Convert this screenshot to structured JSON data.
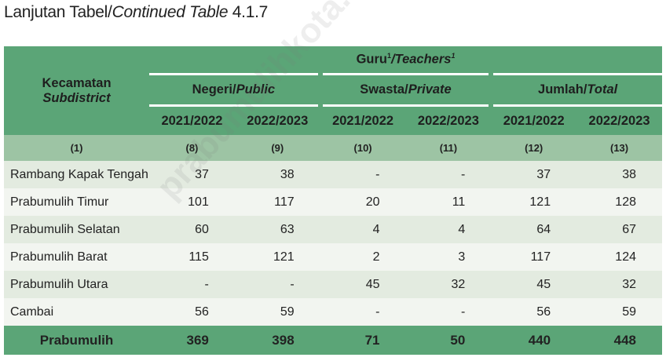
{
  "title": {
    "main": "Lanjutan Tabel/",
    "italic": "Continued Table",
    "num": " 4.1.7"
  },
  "header": {
    "col1": "Kecamatan",
    "col1_en": "Subdistrict",
    "group": "Guru",
    "group_sup": "1",
    "group_en": "/Teachers",
    "group_en_sup": "1",
    "sub": [
      {
        "id": "Negeri",
        "en": "Public"
      },
      {
        "id": "Swasta",
        "en": "Private"
      },
      {
        "id": "Jumlah",
        "en": "Total"
      }
    ],
    "years": [
      "2021/2022",
      "2022/2023",
      "2021/2022",
      "2022/2023",
      "2021/2022",
      "2022/2023"
    ],
    "nums": [
      "(1)",
      "(8)",
      "(9)",
      "(10)",
      "(11)",
      "(12)",
      "(13)"
    ]
  },
  "rows": [
    {
      "name": "Rambang Kapak Tengah",
      "v": [
        "37",
        "38",
        "-",
        "-",
        "37",
        "38"
      ]
    },
    {
      "name": "Prabumulih Timur",
      "v": [
        "101",
        "117",
        "20",
        "11",
        "121",
        "128"
      ]
    },
    {
      "name": "Prabumulih Selatan",
      "v": [
        "60",
        "63",
        "4",
        "4",
        "64",
        "67"
      ]
    },
    {
      "name": "Prabumulih Barat",
      "v": [
        "115",
        "121",
        "2",
        "3",
        "117",
        "124"
      ]
    },
    {
      "name": "Prabumulih Utara",
      "v": [
        "-",
        "-",
        "45",
        "32",
        "45",
        "32"
      ]
    },
    {
      "name": "Cambai",
      "v": [
        "56",
        "59",
        "-",
        "-",
        "56",
        "59"
      ]
    }
  ],
  "total": {
    "name": "Prabumulih",
    "v": [
      "369",
      "398",
      "71",
      "50",
      "440",
      "448"
    ]
  },
  "watermark": "prabumulihkota.bps.go.id",
  "colors": {
    "header": "#5ba577",
    "subheader": "#9dc4a4",
    "row_odd": "#e3ebe0",
    "row_even": "#f2f5f0"
  }
}
